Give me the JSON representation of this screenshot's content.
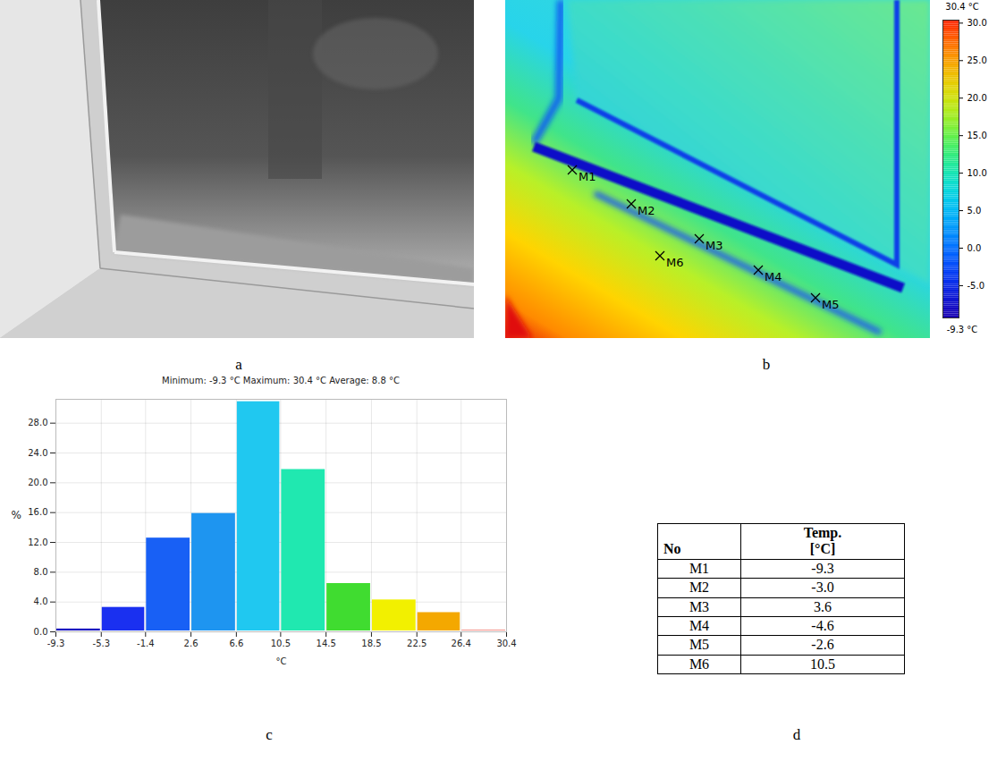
{
  "chart_data": [
    {
      "type": "image",
      "panel": "a"
    },
    {
      "type": "thermogram",
      "panel": "b",
      "markers": [
        "M1",
        "M2",
        "M3",
        "M4",
        "M5",
        "M6"
      ],
      "colorbar": {
        "min": {
          "value": -9.3,
          "label": "-9.3 °C"
        },
        "max": {
          "value": 30.4,
          "label": "30.4 °C"
        },
        "ticks": [
          {
            "value": -5,
            "label": "-5.0"
          },
          {
            "value": 0,
            "label": "0.0"
          },
          {
            "value": 5,
            "label": "5.0"
          },
          {
            "value": 10,
            "label": "10.0"
          },
          {
            "value": 15,
            "label": "15.0"
          },
          {
            "value": 20,
            "label": "20.0"
          },
          {
            "value": 25,
            "label": "25.0"
          },
          {
            "value": 30,
            "label": "30.0"
          }
        ]
      }
    },
    {
      "type": "histogram",
      "panel": "c",
      "title": "Minimum: -9.3 °C Maximum: 30.4 °C Average: 8.8 °C",
      "bins": [
        -9.3,
        -5.3,
        -1.4,
        2.6,
        6.6,
        10.5,
        14.5,
        18.5,
        22.5,
        26.4,
        30.4
      ],
      "values": [
        0.5,
        3.4,
        12.7,
        16.0,
        31.0,
        21.9,
        6.6,
        4.4,
        2.7,
        0.3
      ],
      "colors": [
        "#1810c0",
        "#1a30f0",
        "#1860f5",
        "#1e95f0",
        "#20c8f0",
        "#20e8b0",
        "#40dc30",
        "#f2f000",
        "#f4a800",
        "#e82010"
      ],
      "xlabel": "°C",
      "ylabel": "%",
      "xlim": [
        -9.3,
        30.4
      ],
      "xticks": [
        -9.3,
        -5.3,
        -1.4,
        2.6,
        6.6,
        10.5,
        14.5,
        18.5,
        22.5,
        26.4,
        30.4
      ],
      "ylim": [
        0,
        31.2
      ],
      "yticks": [
        {
          "value": 0,
          "label": "0.0"
        },
        {
          "value": 4,
          "label": "4.0"
        },
        {
          "value": 8,
          "label": "8.0"
        },
        {
          "value": 12,
          "label": "12.0"
        },
        {
          "value": 16,
          "label": "16.0"
        },
        {
          "value": 20,
          "label": "20.0"
        },
        {
          "value": 24,
          "label": "24.0"
        },
        {
          "value": 28,
          "label": "28.0"
        }
      ],
      "grid": true
    },
    {
      "type": "table",
      "panel": "d",
      "columns": [
        "No",
        "Temp. [°C]"
      ],
      "rows": [
        [
          "M1",
          "-9.3"
        ],
        [
          "M2",
          "-3.0"
        ],
        [
          "M3",
          "3.6"
        ],
        [
          "M4",
          "-4.6"
        ],
        [
          "M5",
          "-2.6"
        ],
        [
          "M6",
          "10.5"
        ]
      ]
    }
  ]
}
